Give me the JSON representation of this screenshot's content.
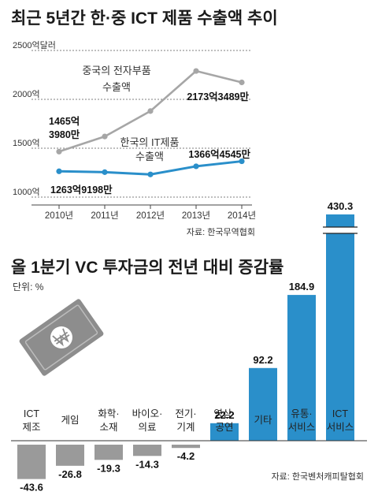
{
  "chart_data": [
    {
      "type": "line",
      "title": "최근 5년간 한·중 ICT 제품 수출액 추이",
      "y_ticks": [
        "2500억달러",
        "2000억",
        "1500억",
        "1000억"
      ],
      "y_tick_values": [
        2500,
        2000,
        1500,
        1000
      ],
      "ylim": [
        1000,
        2500
      ],
      "categories": [
        "2010년",
        "2011년",
        "2012년",
        "2013년",
        "2014년"
      ],
      "grid": true,
      "series": [
        {
          "name": "중국의 전자부품 수출액",
          "name_lines": [
            "중국의 전자부품",
            "수출액"
          ],
          "color": "#a6a6a6",
          "values": [
            1465.4,
            1620,
            1880,
            2290,
            2173.3
          ],
          "labels": [
            {
              "index": 0,
              "lines": [
                "1465억",
                "3980만"
              ]
            },
            {
              "index": 4,
              "lines": [
                "2173억3489만"
              ]
            }
          ]
        },
        {
          "name": "한국의 IT제품 수출액",
          "name_lines": [
            "한국의 IT제품",
            "수출액"
          ],
          "color": "#2a8fca",
          "values": [
            1263.9,
            1255,
            1232,
            1315,
            1366.5
          ],
          "labels": [
            {
              "index": 0,
              "lines": [
                "1263억9198만"
              ]
            },
            {
              "index": 4,
              "lines": [
                "1366억4545만"
              ]
            }
          ]
        }
      ],
      "source": "자료: 한국무역협회"
    },
    {
      "type": "bar",
      "title": "올 1분기 VC 투자금의 전년 대비 증감률",
      "unit": "단위: %",
      "categories": [
        "ICT 제조",
        "게임",
        "화학·소재",
        "바이오·의료",
        "전기·기계",
        "영상·공연",
        "기타",
        "유통·서비스",
        "ICT 서비스"
      ],
      "category_lines": [
        [
          "ICT",
          "제조"
        ],
        [
          "게임"
        ],
        [
          "화학·",
          "소재"
        ],
        [
          "바이오·",
          "의료"
        ],
        [
          "전기·",
          "기계"
        ],
        [
          "영상·",
          "공연"
        ],
        [
          "기타"
        ],
        [
          "유통·",
          "서비스"
        ],
        [
          "ICT",
          "서비스"
        ]
      ],
      "values": [
        -43.6,
        -26.8,
        -19.3,
        -14.3,
        -4.2,
        22.2,
        92.2,
        184.9,
        430.3
      ],
      "value_labels": [
        "-43.6",
        "-26.8",
        "-19.3",
        "-14.3",
        "-4.2",
        "22.2",
        "92.2",
        "184.9",
        "430.3"
      ],
      "axis_break_above": 260,
      "colors": {
        "positive": "#2a8fca",
        "negative": "#9a9a9a"
      },
      "source": "자료: 한국벤처캐피탈협회"
    }
  ]
}
